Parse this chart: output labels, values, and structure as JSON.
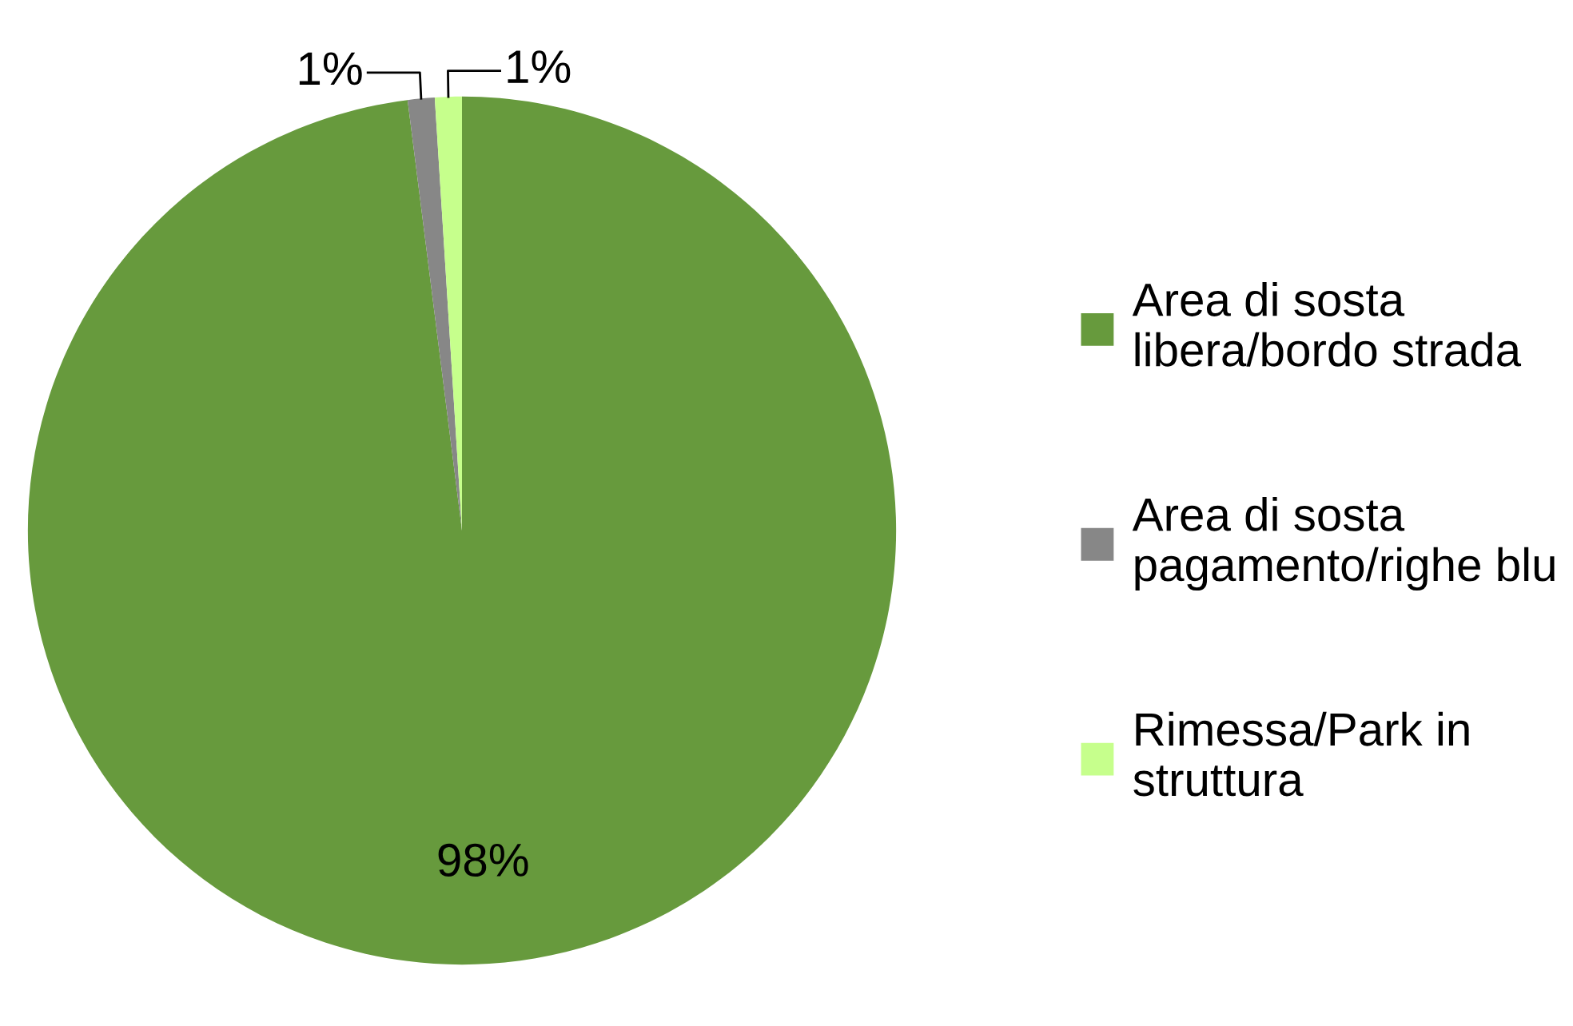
{
  "chart_data": {
    "type": "pie",
    "categories": [
      "Area di sosta libera/bordo strada",
      "Area di sosta pagamento/righe blu",
      "Rimessa/Park in struttura"
    ],
    "values": [
      98,
      1,
      1
    ],
    "colors": [
      "#679a3d",
      "#878787",
      "#c6ff8c"
    ],
    "value_labels": [
      "98%",
      "1%",
      "1%"
    ],
    "legend": "right"
  }
}
